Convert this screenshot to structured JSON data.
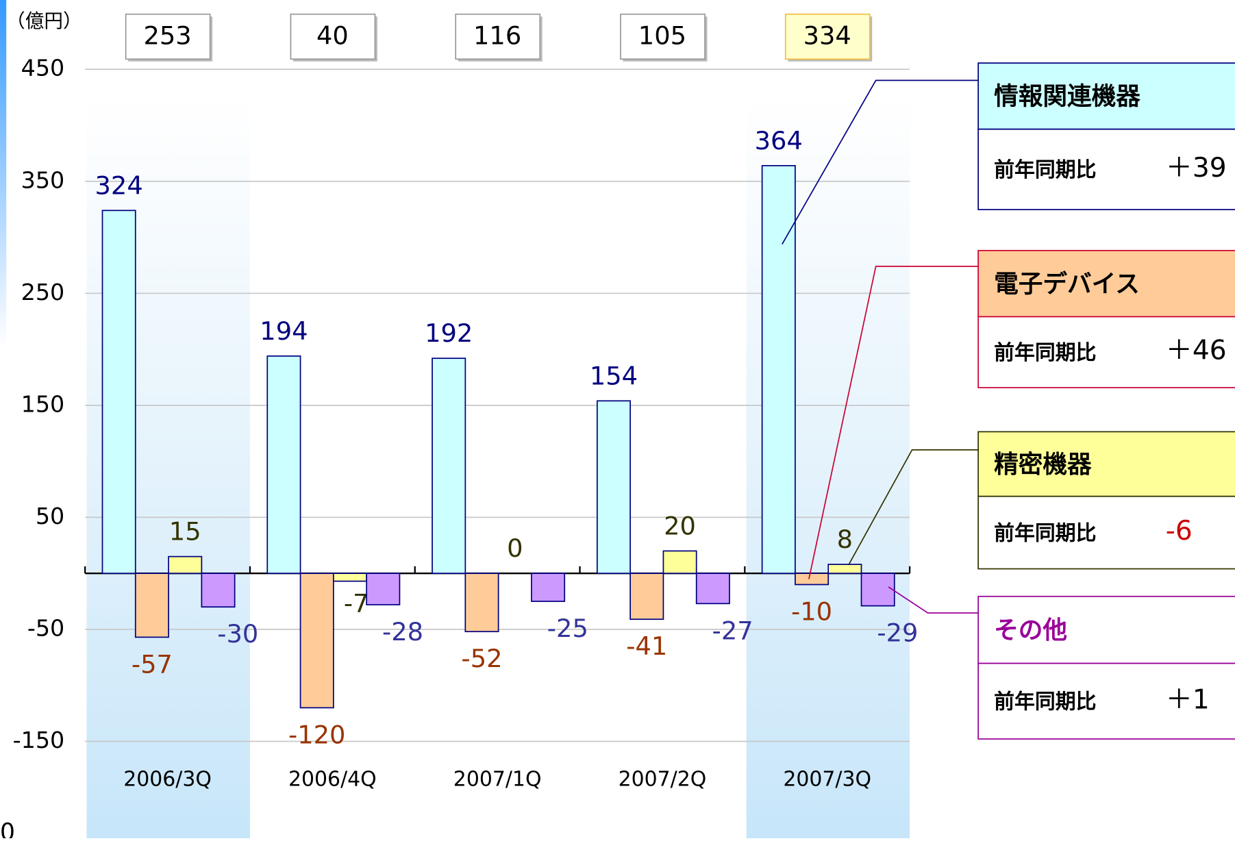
{
  "chart_data": {
    "type": "bar",
    "unit_label": "（億円）",
    "corner_note": "0",
    "categories": [
      "2006/3Q",
      "2006/4Q",
      "2007/1Q",
      "2007/2Q",
      "2007/3Q"
    ],
    "totals": [
      253,
      40,
      116,
      105,
      334
    ],
    "highlight": [
      true,
      false,
      false,
      false,
      true
    ],
    "yoy_title": "前年同期比",
    "series": [
      {
        "name": "情報関連機器",
        "color": "#ccffff",
        "values": [
          324,
          194,
          192,
          154,
          364
        ],
        "yoy_label": "＋39"
      },
      {
        "name": "電子デバイス",
        "color": "#ffcc99",
        "values": [
          -57,
          -120,
          -52,
          -41,
          -10
        ],
        "yoy_label": "＋46"
      },
      {
        "name": "精密機器",
        "color": "#ffff99",
        "values": [
          15,
          -7,
          0,
          20,
          8
        ],
        "yoy_label": "-6"
      },
      {
        "name": "その他",
        "color": "#cc99ff",
        "values": [
          -30,
          -28,
          -25,
          -27,
          -29
        ],
        "yoy_label": "＋1"
      }
    ],
    "ylim": [
      -150,
      450
    ],
    "yticks": [
      450,
      350,
      250,
      150,
      50,
      -50,
      -150
    ],
    "grid": true
  }
}
